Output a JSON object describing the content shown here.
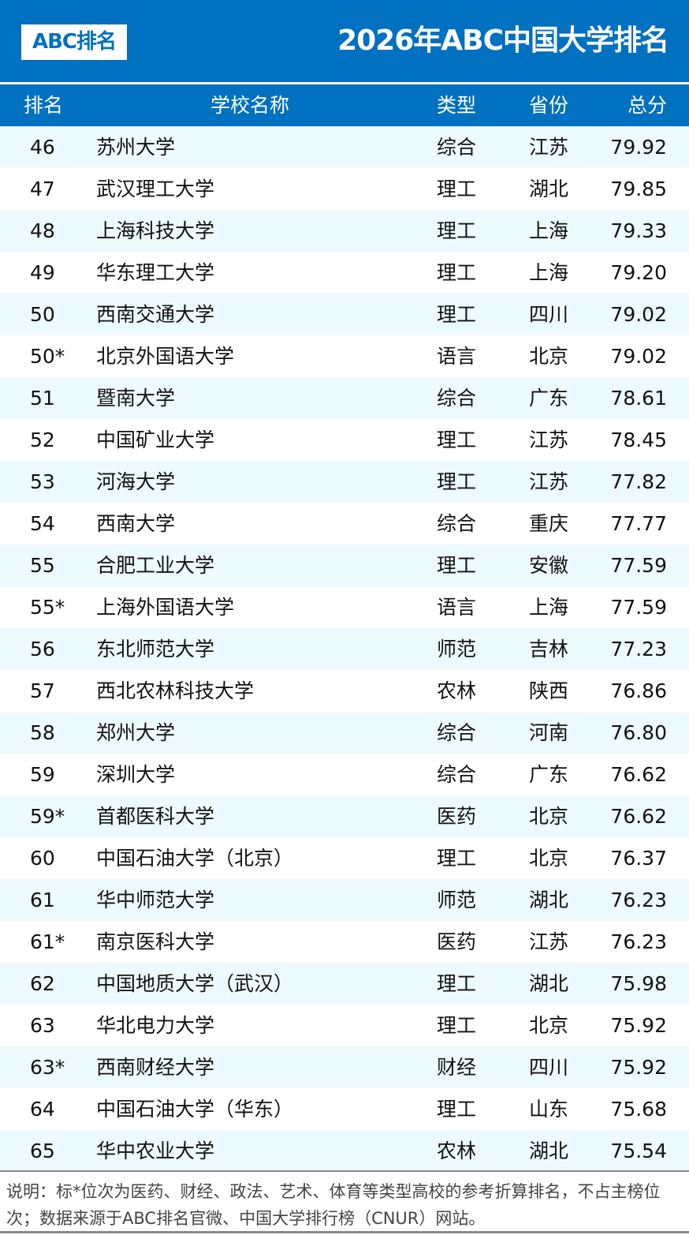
{
  "header": {
    "logo": "ABC排名",
    "title": "2026年ABC中国大学排名",
    "color": "#0070c0"
  },
  "columns": [
    "排名",
    "学校名称",
    "类型",
    "省份",
    "总分"
  ],
  "rows": [
    [
      "46",
      "苏州大学",
      "综合",
      "江苏",
      "79.92"
    ],
    [
      "47",
      "武汉理工大学",
      "理工",
      "湖北",
      "79.85"
    ],
    [
      "48",
      "上海科技大学",
      "理工",
      "上海",
      "79.33"
    ],
    [
      "49",
      "华东理工大学",
      "理工",
      "上海",
      "79.20"
    ],
    [
      "50",
      "西南交通大学",
      "理工",
      "四川",
      "79.02"
    ],
    [
      "50*",
      "北京外国语大学",
      "语言",
      "北京",
      "79.02"
    ],
    [
      "51",
      "暨南大学",
      "综合",
      "广东",
      "78.61"
    ],
    [
      "52",
      "中国矿业大学",
      "理工",
      "江苏",
      "78.45"
    ],
    [
      "53",
      "河海大学",
      "理工",
      "江苏",
      "77.82"
    ],
    [
      "54",
      "西南大学",
      "综合",
      "重庆",
      "77.77"
    ],
    [
      "55",
      "合肥工业大学",
      "理工",
      "安徽",
      "77.59"
    ],
    [
      "55*",
      "上海外国语大学",
      "语言",
      "上海",
      "77.59"
    ],
    [
      "56",
      "东北师范大学",
      "师范",
      "吉林",
      "77.23"
    ],
    [
      "57",
      "西北农林科技大学",
      "农林",
      "陕西",
      "76.86"
    ],
    [
      "58",
      "郑州大学",
      "综合",
      "河南",
      "76.80"
    ],
    [
      "59",
      "深圳大学",
      "综合",
      "广东",
      "76.62"
    ],
    [
      "59*",
      "首都医科大学",
      "医药",
      "北京",
      "76.62"
    ],
    [
      "60",
      "中国石油大学（北京）",
      "理工",
      "北京",
      "76.37"
    ],
    [
      "61",
      "华中师范大学",
      "师范",
      "湖北",
      "76.23"
    ],
    [
      "61*",
      "南京医科大学",
      "医药",
      "江苏",
      "76.23"
    ],
    [
      "62",
      "中国地质大学（武汉）",
      "理工",
      "湖北",
      "75.98"
    ],
    [
      "63",
      "华北电力大学",
      "理工",
      "北京",
      "75.92"
    ],
    [
      "63*",
      "西南财经大学",
      "财经",
      "四川",
      "75.92"
    ],
    [
      "64",
      "中国石油大学（华东）",
      "理工",
      "山东",
      "75.68"
    ],
    [
      "65",
      "华中农业大学",
      "农林",
      "湖北",
      "75.54"
    ]
  ],
  "footer": "说明：标*位次为医药、财经、政法、艺术、体育等类型高校的参考折算排名，不占主榜位次；数据来源于ABC排名官微、中国大学排行榜（CNUR）网站。"
}
